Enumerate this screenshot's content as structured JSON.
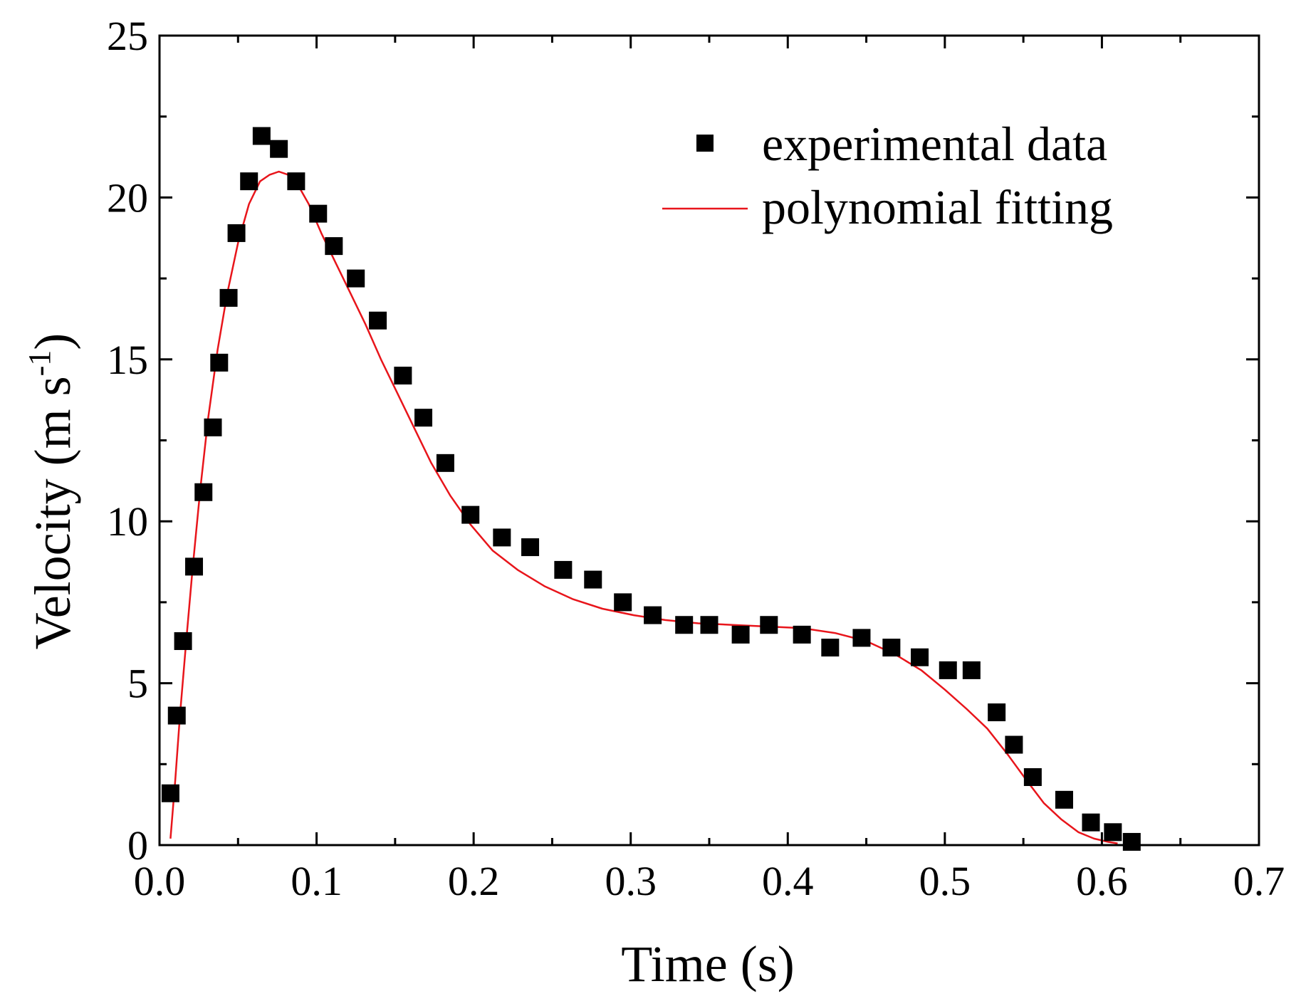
{
  "chart_data": {
    "type": "scatter",
    "title": "",
    "xlabel": "Time (s)",
    "ylabel": {
      "main": "Velocity (m s",
      "superscript": "-1",
      "close": ")"
    },
    "xlim": [
      0.0,
      0.7
    ],
    "ylim": [
      0,
      25
    ],
    "x_ticks": [
      0.0,
      0.1,
      0.2,
      0.3,
      0.4,
      0.5,
      0.6,
      0.7
    ],
    "x_tick_labels": [
      "0.0",
      "0.1",
      "0.2",
      "0.3",
      "0.4",
      "0.5",
      "0.6",
      "0.7"
    ],
    "x_minor_ticks": [
      0.05,
      0.15,
      0.25,
      0.35,
      0.45,
      0.55,
      0.65
    ],
    "y_ticks": [
      0,
      5,
      10,
      15,
      20,
      25
    ],
    "y_tick_labels": [
      "0",
      "5",
      "10",
      "15",
      "20",
      "25"
    ],
    "y_minor_ticks": [
      2.5,
      7.5,
      12.5,
      17.5,
      22.5
    ],
    "grid": false,
    "legend_position": "top-right",
    "series": [
      {
        "name": "experimental data",
        "kind": "scatter",
        "marker": "square",
        "color": "#000000",
        "x": [
          0.007,
          0.011,
          0.015,
          0.022,
          0.028,
          0.034,
          0.038,
          0.044,
          0.049,
          0.057,
          0.065,
          0.076,
          0.087,
          0.101,
          0.111,
          0.125,
          0.139,
          0.155,
          0.168,
          0.182,
          0.198,
          0.218,
          0.236,
          0.257,
          0.276,
          0.295,
          0.314,
          0.334,
          0.35,
          0.37,
          0.388,
          0.409,
          0.427,
          0.447,
          0.466,
          0.484,
          0.502,
          0.517,
          0.533,
          0.544,
          0.556,
          0.576,
          0.593,
          0.607,
          0.619
        ],
        "values": [
          1.6,
          4.0,
          6.3,
          8.6,
          10.9,
          12.9,
          14.9,
          16.9,
          18.9,
          20.5,
          21.9,
          21.5,
          20.5,
          19.5,
          18.5,
          17.5,
          16.2,
          14.5,
          13.2,
          11.8,
          10.2,
          9.5,
          9.2,
          8.5,
          8.2,
          7.5,
          7.1,
          6.8,
          6.8,
          6.5,
          6.8,
          6.5,
          6.1,
          6.4,
          6.1,
          5.8,
          5.4,
          5.4,
          4.1,
          3.1,
          2.1,
          1.4,
          0.7,
          0.4,
          0.1
        ]
      },
      {
        "name": "polynomial fitting",
        "kind": "line",
        "color": "#e8151b",
        "x": [
          0.007,
          0.01,
          0.013,
          0.017,
          0.021,
          0.026,
          0.031,
          0.037,
          0.043,
          0.05,
          0.057,
          0.064,
          0.07,
          0.076,
          0.082,
          0.088,
          0.095,
          0.103,
          0.112,
          0.121,
          0.131,
          0.141,
          0.151,
          0.162,
          0.173,
          0.185,
          0.198,
          0.212,
          0.228,
          0.245,
          0.263,
          0.282,
          0.302,
          0.322,
          0.343,
          0.365,
          0.387,
          0.409,
          0.43,
          0.45,
          0.468,
          0.485,
          0.5,
          0.514,
          0.527,
          0.54,
          0.552,
          0.563,
          0.574,
          0.585,
          0.595,
          0.604,
          0.61
        ],
        "values": [
          0.2,
          2.0,
          4.0,
          6.3,
          8.5,
          11.0,
          13.2,
          15.3,
          17.0,
          18.6,
          19.8,
          20.5,
          20.7,
          20.8,
          20.7,
          20.4,
          19.8,
          18.9,
          18.0,
          17.1,
          16.1,
          15.0,
          14.0,
          12.9,
          11.8,
          10.8,
          9.9,
          9.1,
          8.5,
          8.0,
          7.6,
          7.3,
          7.1,
          6.95,
          6.85,
          6.8,
          6.75,
          6.7,
          6.55,
          6.3,
          5.9,
          5.4,
          4.8,
          4.2,
          3.6,
          2.8,
          2.0,
          1.3,
          0.8,
          0.4,
          0.2,
          0.1,
          0.05
        ]
      }
    ]
  }
}
